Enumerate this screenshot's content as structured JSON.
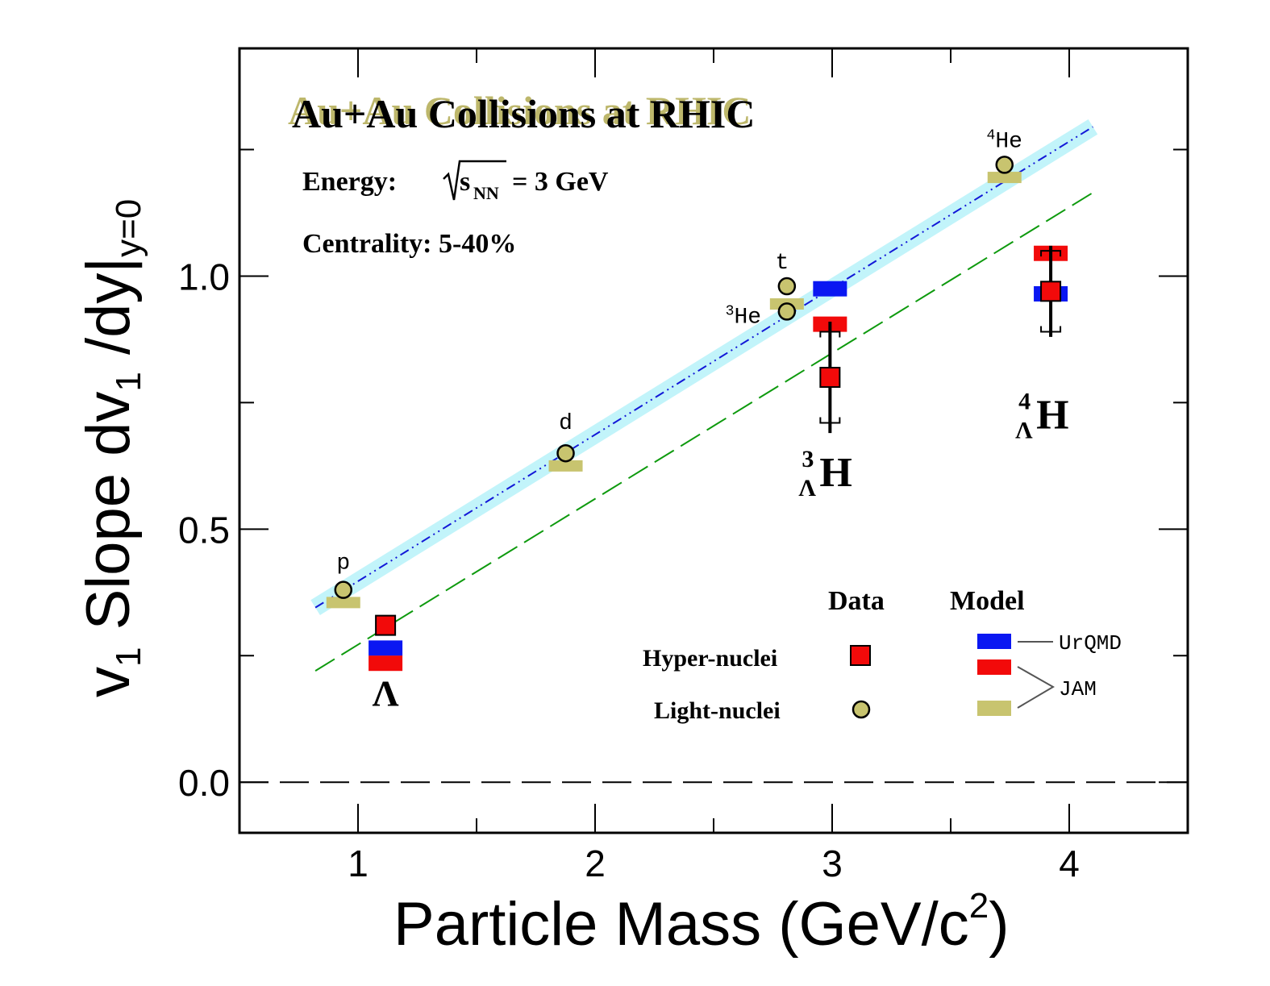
{
  "chart_data": {
    "type": "scatter",
    "title": "Au+Au Collisions at RHIC",
    "energy_label": "Energy:",
    "energy_value": "= 3 GeV",
    "energy_symbol": "s",
    "energy_sub": "NN",
    "centrality": "Centrality: 5-40%",
    "xlabel": {
      "pre": "Particle Mass (GeV/c",
      "sup": "2",
      "post": ")"
    },
    "ylabel": {
      "a": "v",
      "a_sub": "1",
      "b": " Slope dv",
      "b_sub": "1",
      "c": " /dy|",
      "c_sub": "y=0"
    },
    "xlim": [
      0.5,
      4.5
    ],
    "ylim": [
      -0.1,
      1.45
    ],
    "xticks": [
      1,
      2,
      3,
      4
    ],
    "xtick_labels": [
      "1",
      "2",
      "3",
      "4"
    ],
    "yticks": [
      0.0,
      0.5,
      1.0
    ],
    "ytick_labels": [
      "0.0",
      "0.5",
      "1.0"
    ],
    "grid": false,
    "zero_line": 0.0,
    "light_nuclei": [
      {
        "name": "p",
        "x": 0.938,
        "y": 0.38
      },
      {
        "name": "d",
        "x": 1.876,
        "y": 0.65
      },
      {
        "name": "t",
        "x": 2.809,
        "y": 0.98
      },
      {
        "name": "He",
        "sup": "3",
        "x": 2.809,
        "y": 0.93
      },
      {
        "name": "He",
        "sup": "4",
        "x": 3.727,
        "y": 1.22
      }
    ],
    "hyper_nuclei": [
      {
        "name": "Λ",
        "x": 1.116,
        "y": 0.31,
        "err": 0,
        "sys": 0
      },
      {
        "name": "H",
        "sup": "3",
        "sub": "Λ",
        "x": 2.991,
        "y": 0.8,
        "err": 0.11,
        "sys": 0.09
      },
      {
        "name": "H",
        "sup": "4",
        "sub": "Λ",
        "x": 3.922,
        "y": 0.97,
        "err": 0.09,
        "sys": 0.08
      }
    ],
    "model_urqmd": [
      {
        "x": 1.116,
        "y": 0.265
      },
      {
        "x": 2.991,
        "y": 0.975
      },
      {
        "x": 3.922,
        "y": 0.965
      }
    ],
    "model_jam_hyper": [
      {
        "x": 1.116,
        "y": 0.235
      },
      {
        "x": 2.991,
        "y": 0.905
      },
      {
        "x": 3.922,
        "y": 1.045
      }
    ],
    "model_jam_light": [
      {
        "x": 0.938,
        "y": 0.355
      },
      {
        "x": 1.876,
        "y": 0.625
      },
      {
        "x": 2.809,
        "y": 0.945
      },
      {
        "x": 3.727,
        "y": 1.195
      }
    ],
    "fit_light": {
      "x": [
        0.82,
        4.1
      ],
      "y": [
        0.345,
        1.295
      ]
    },
    "fit_hyper": {
      "x": [
        0.82,
        4.1
      ],
      "y": [
        0.22,
        1.165
      ]
    },
    "legend": {
      "col_data": "Data",
      "col_model": "Model",
      "row_hyper": "Hyper-nuclei",
      "row_light": "Light-nuclei",
      "urqmd": "UrQMD",
      "jam": "JAM",
      "placement": "bottom-right"
    },
    "colors": {
      "urqmd": "#0a17f2",
      "jam_hyper": "#f20a0a",
      "jam_light": "#c8c46f",
      "light_marker": "#c8c46f",
      "hyper_marker": "#f20a0a",
      "fit_band": "#c2f4fa",
      "fit_light_line": "#1218d8",
      "fit_hyper_line": "#0e9a0e",
      "title_shadow": "#bdb76b"
    }
  }
}
